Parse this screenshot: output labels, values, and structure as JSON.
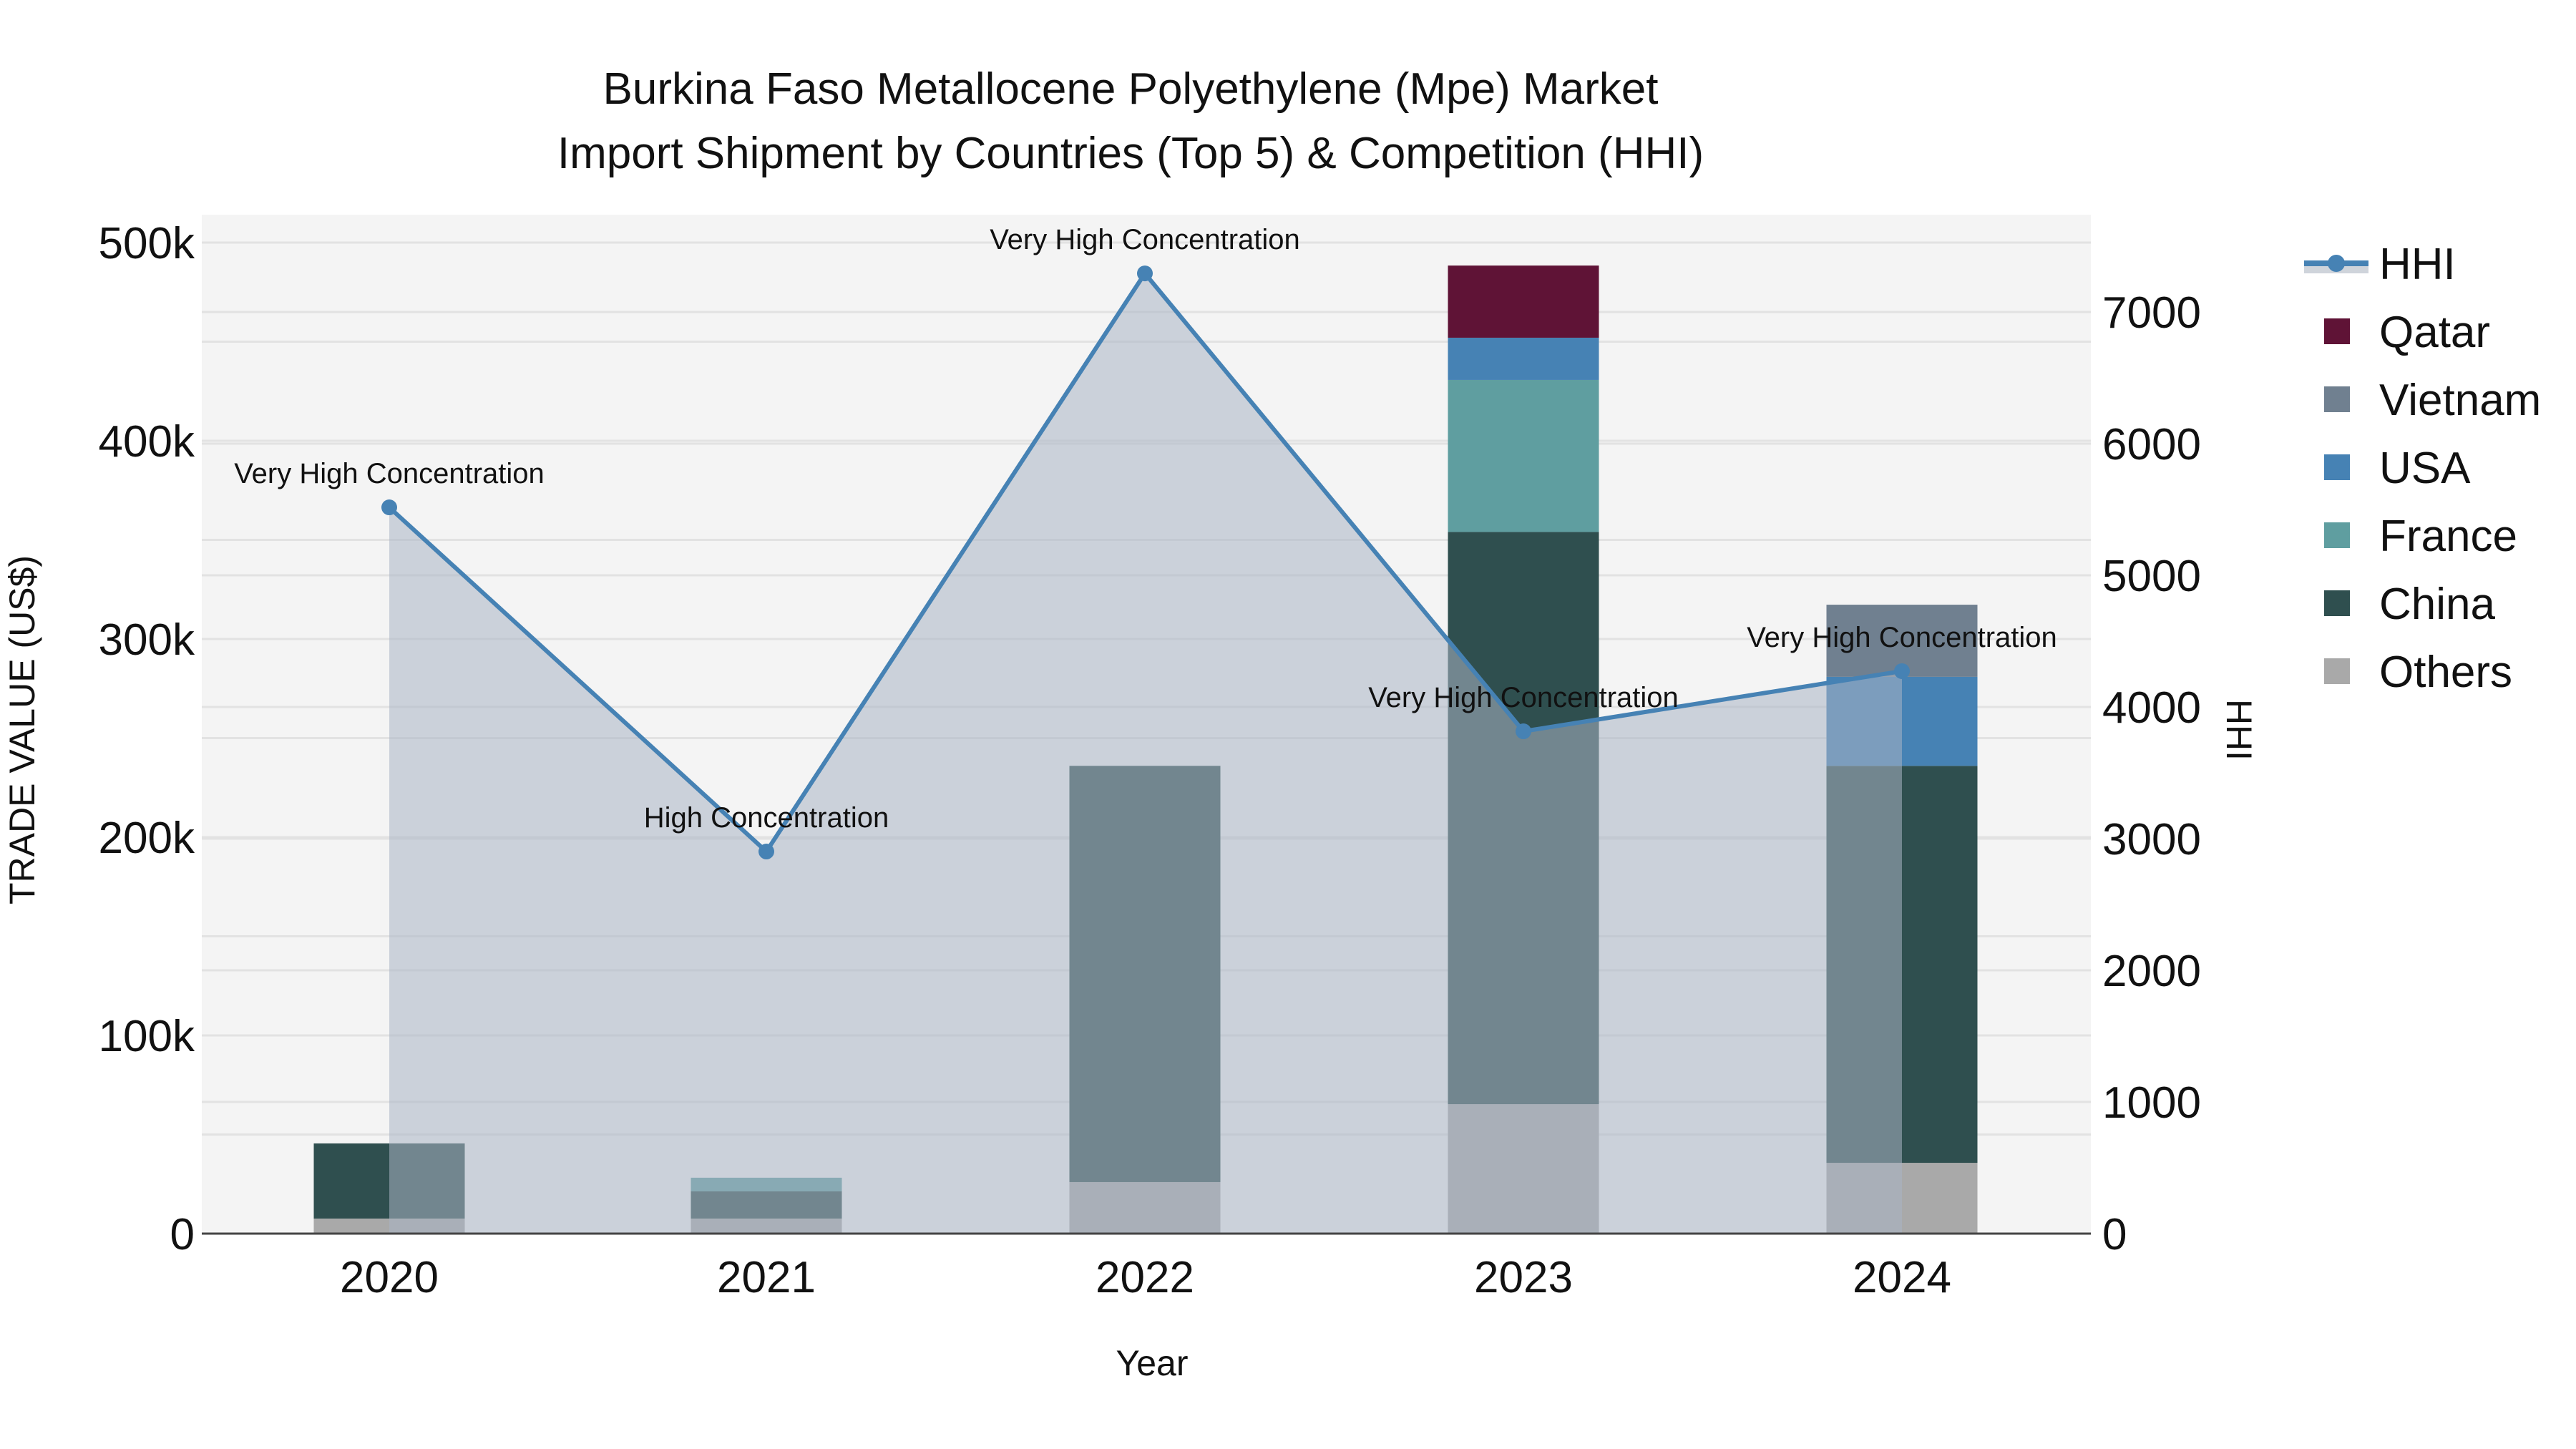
{
  "title_line1": "Burkina Faso Metallocene Polyethylene (Mpe) Market",
  "title_line2": "Import Shipment by Countries (Top 5) & Competition (HHI)",
  "colors": {
    "plot_bg": "#f4f4f4",
    "grid": "#e2e2e2",
    "China": "#2f4f4f",
    "France": "#5f9ea0",
    "USA": "#4682b4",
    "Vietnam": "#708090",
    "Qatar": "#5f1336",
    "Others": "#a9a9a9",
    "hhi_line": "#4682b4",
    "hhi_fill": "rgba(170,180,196,0.55)"
  },
  "legend": [
    {
      "label": "HHI",
      "type": "line"
    },
    {
      "label": "Qatar",
      "type": "box",
      "color": "#5f1336"
    },
    {
      "label": "Vietnam",
      "type": "box",
      "color": "#708090"
    },
    {
      "label": "USA",
      "type": "box",
      "color": "#4682b4"
    },
    {
      "label": "France",
      "type": "box",
      "color": "#5f9ea0"
    },
    {
      "label": "China",
      "type": "box",
      "color": "#2f4f4f"
    },
    {
      "label": "Others",
      "type": "box",
      "color": "#a9a9a9"
    }
  ],
  "chart_data": {
    "type": "bar",
    "subtype": "stacked bar + line (dual axis)",
    "title": "Burkina Faso Metallocene Polyethylene (Mpe) Market\nImport Shipment by Countries (Top 5) & Competition (HHI)",
    "xlabel": "Year",
    "ylabel": "TRADE VALUE (US$)",
    "y2label": "HHI",
    "categories": [
      "2020",
      "2021",
      "2022",
      "2023",
      "2024"
    ],
    "ylim": [
      0,
      510000
    ],
    "y_ticks": [
      "0",
      "100k",
      "200k",
      "300k",
      "400k",
      "500k"
    ],
    "y2lim": [
      0,
      7550
    ],
    "y2_ticks": [
      "0",
      "1000",
      "2000",
      "3000",
      "4000",
      "5000",
      "6000",
      "7000"
    ],
    "grid": true,
    "legend_position": "right",
    "stack_order": [
      "Others",
      "China",
      "France",
      "USA",
      "Vietnam",
      "Qatar"
    ],
    "series": [
      {
        "name": "Others",
        "type": "bar",
        "values": [
          7600,
          7600,
          26000,
          65300,
          35700
        ]
      },
      {
        "name": "China",
        "type": "bar",
        "values": [
          37900,
          13700,
          210000,
          288700,
          200300
        ]
      },
      {
        "name": "France",
        "type": "bar",
        "values": [
          0,
          6900,
          0,
          76700,
          0
        ]
      },
      {
        "name": "USA",
        "type": "bar",
        "values": [
          0,
          0,
          0,
          21300,
          44900
        ]
      },
      {
        "name": "Vietnam",
        "type": "bar",
        "values": [
          0,
          0,
          0,
          0,
          36400
        ]
      },
      {
        "name": "Qatar",
        "type": "bar",
        "values": [
          0,
          0,
          0,
          36400,
          0
        ]
      },
      {
        "name": "HHI",
        "type": "line",
        "axis": "y2",
        "fill": "tozeroy",
        "values": [
          5516,
          2902,
          7293,
          3815,
          4272
        ]
      }
    ],
    "annotations": [
      {
        "x": "2020",
        "text": "Very High Concentration"
      },
      {
        "x": "2021",
        "text": "High Concentration"
      },
      {
        "x": "2022",
        "text": "Very High Concentration"
      },
      {
        "x": "2023",
        "text": "Very High Concentration"
      },
      {
        "x": "2024",
        "text": "Very High Concentration"
      }
    ]
  }
}
